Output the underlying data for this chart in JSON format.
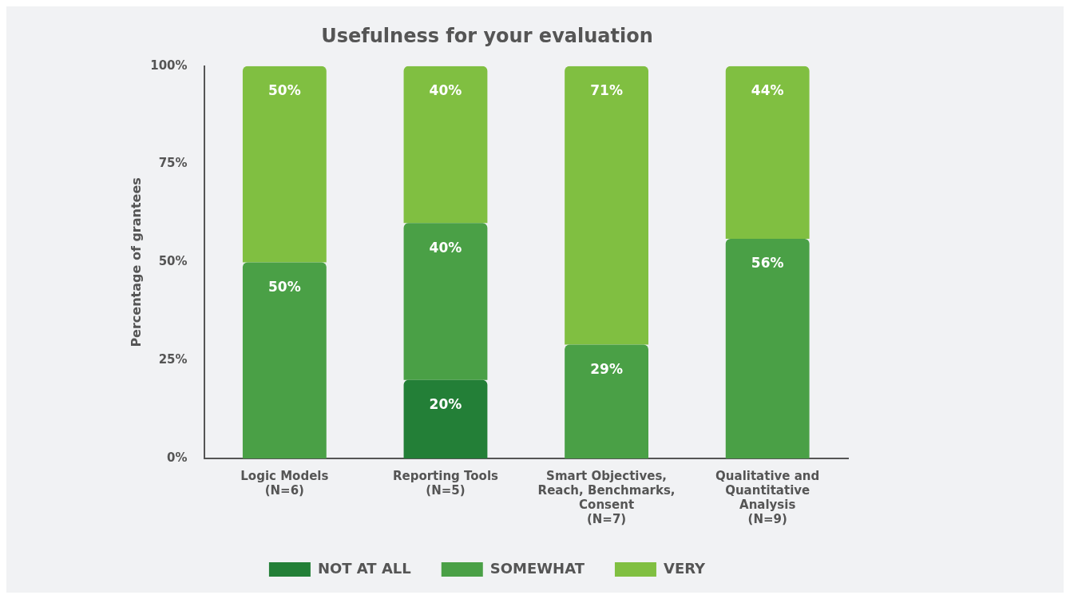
{
  "chart_data": {
    "type": "bar",
    "title": "Usefulness for your evaluation",
    "ylabel": "Percentage of grantees",
    "categories": [
      "Logic Models\n(N=6)",
      "Reporting Tools\n(N=5)",
      "Smart Objectives,\nReach, Benchmarks,\nConsent\n(N=7)",
      "Qualitative and\nQuantitative\nAnalysis\n(N=9)"
    ],
    "stacked": true,
    "legend": "bottom",
    "ylim": [
      0,
      100
    ],
    "yticks": [
      {
        "value": 0,
        "label": "0%"
      },
      {
        "value": 25,
        "label": "25%"
      },
      {
        "value": 50,
        "label": "50%"
      },
      {
        "value": 75,
        "label": "75%"
      },
      {
        "value": 100,
        "label": "100%"
      }
    ],
    "series": [
      {
        "name": "NOT AT ALL",
        "color": "#237f37",
        "values": [
          null,
          20,
          null,
          null
        ],
        "value_labels": [
          null,
          "20%",
          null,
          null
        ]
      },
      {
        "name": "SOMEWHAT",
        "color": "#4aa046",
        "values": [
          50,
          40,
          29,
          56
        ],
        "value_labels": [
          "50%",
          "40%",
          "29%",
          "56%"
        ]
      },
      {
        "name": "VERY",
        "color": "#80bf41",
        "values": [
          50,
          40,
          71,
          44
        ],
        "value_labels": [
          "50%",
          "40%",
          "71%",
          "44%"
        ]
      }
    ]
  }
}
